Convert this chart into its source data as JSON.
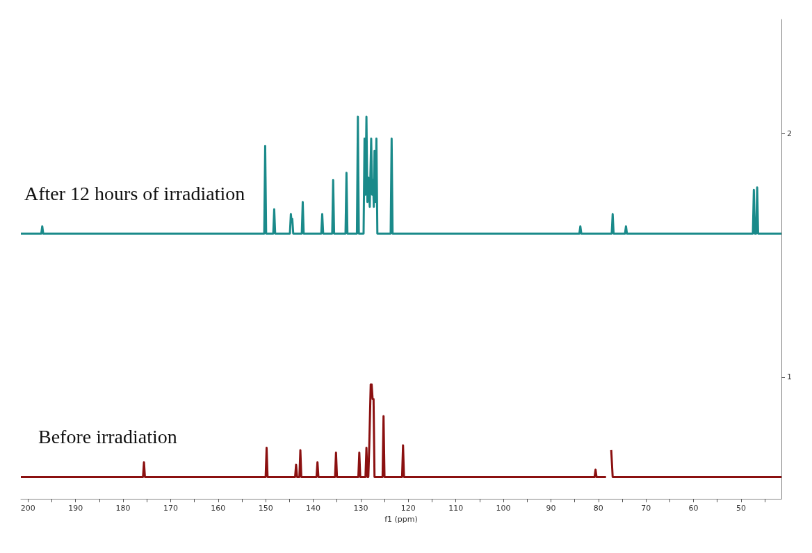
{
  "chart_data": {
    "type": "line",
    "xlabel": "f1 (ppm)",
    "legend": false,
    "grid": false,
    "xlim": [
      201.5,
      41.5
    ],
    "ylim": [
      0.5,
      2.47
    ],
    "xticks": [
      200,
      {
        "value": 195,
        "label": null
      },
      190,
      {
        "value": 185,
        "label": null
      },
      180,
      {
        "value": 175,
        "label": null
      },
      170,
      {
        "value": 165,
        "label": null
      },
      160,
      {
        "value": 155,
        "label": null
      },
      150,
      {
        "value": 145,
        "label": null
      },
      140,
      {
        "value": 135,
        "label": null
      },
      130,
      {
        "value": 125,
        "label": null
      },
      120,
      {
        "value": 115,
        "label": null
      },
      110,
      {
        "value": 105,
        "label": null
      },
      100,
      {
        "value": 95,
        "label": null
      },
      90,
      {
        "value": 85,
        "label": null
      },
      80,
      {
        "value": 75,
        "label": null
      },
      70,
      {
        "value": 65,
        "label": null
      },
      60,
      {
        "value": 55,
        "label": null
      },
      50,
      {
        "value": 45,
        "label": null
      }
    ],
    "yticks": [
      1,
      2
    ],
    "series": [
      {
        "name": "After 12 hours of irradiation",
        "color": "#1a8a8a",
        "x": [
          201.5,
          197.2,
          197,
          196.8,
          150.3,
          150.1,
          149.9,
          148.4,
          148.2,
          148.0,
          144.9,
          144.7,
          144.55,
          144.4,
          144.2,
          142.4,
          142.2,
          142.0,
          138.3,
          138.1,
          137.9,
          136.0,
          135.8,
          135.6,
          133.2,
          133.0,
          132.8,
          130.8,
          130.6,
          130.4,
          129.4,
          129.2,
          129.0,
          128.8,
          128.6,
          128.4,
          128.1,
          127.8,
          127.6,
          127.4,
          127.25,
          127.1,
          126.9,
          126.7,
          126.5,
          123.7,
          123.5,
          123.3,
          84.0,
          83.8,
          83.6,
          77.2,
          77.0,
          76.8,
          74.4,
          74.2,
          74.0,
          47.5,
          47.3,
          47.1,
          46.8,
          46.6,
          46.4,
          41.5
        ],
        "values": [
          1.59,
          1.59,
          1.62,
          1.59,
          1.59,
          1.95,
          1.59,
          1.59,
          1.69,
          1.59,
          1.59,
          1.67,
          1.64,
          1.65,
          1.59,
          1.59,
          1.72,
          1.59,
          1.59,
          1.67,
          1.59,
          1.59,
          1.81,
          1.59,
          1.59,
          1.84,
          1.59,
          1.59,
          2.07,
          1.59,
          1.59,
          1.98,
          1.75,
          2.07,
          1.72,
          1.82,
          1.7,
          1.98,
          1.75,
          1.81,
          1.7,
          1.93,
          1.72,
          1.98,
          1.59,
          1.59,
          1.98,
          1.59,
          1.59,
          1.62,
          1.59,
          1.59,
          1.67,
          1.59,
          1.59,
          1.62,
          1.59,
          1.59,
          1.77,
          1.59,
          1.59,
          1.78,
          1.59,
          1.59
        ]
      },
      {
        "name": "Before irradiation",
        "color": "#8b1010",
        "x": [
          201.5,
          175.8,
          175.6,
          175.4,
          150.0,
          149.8,
          149.6,
          143.8,
          143.6,
          143.4,
          142.9,
          142.7,
          142.5,
          139.3,
          139.1,
          138.9,
          135.4,
          135.2,
          135.0,
          130.5,
          130.3,
          130.1,
          129.0,
          128.8,
          128.6,
          128.4,
          128.2,
          127.9,
          127.7,
          127.5,
          127.3,
          127.1,
          125.4,
          125.2,
          125.0,
          121.3,
          121.1,
          120.9,
          80.8,
          80.6,
          80.4,
          78.4,
          78.1,
          77.6,
          77.3,
          77.0,
          41.5
        ],
        "values": [
          0.59,
          0.59,
          0.65,
          0.59,
          0.59,
          0.71,
          0.59,
          0.59,
          0.64,
          0.59,
          0.59,
          0.7,
          0.59,
          0.59,
          0.65,
          0.59,
          0.59,
          0.69,
          0.59,
          0.59,
          0.69,
          0.59,
          0.59,
          0.71,
          0.59,
          0.59,
          0.72,
          0.97,
          0.97,
          0.91,
          0.91,
          0.59,
          0.59,
          0.84,
          0.59,
          0.59,
          0.72,
          0.59,
          0.59,
          0.62,
          0.59,
          0.59,
          null,
          null,
          0.7,
          0.59,
          0.59
        ]
      }
    ]
  }
}
